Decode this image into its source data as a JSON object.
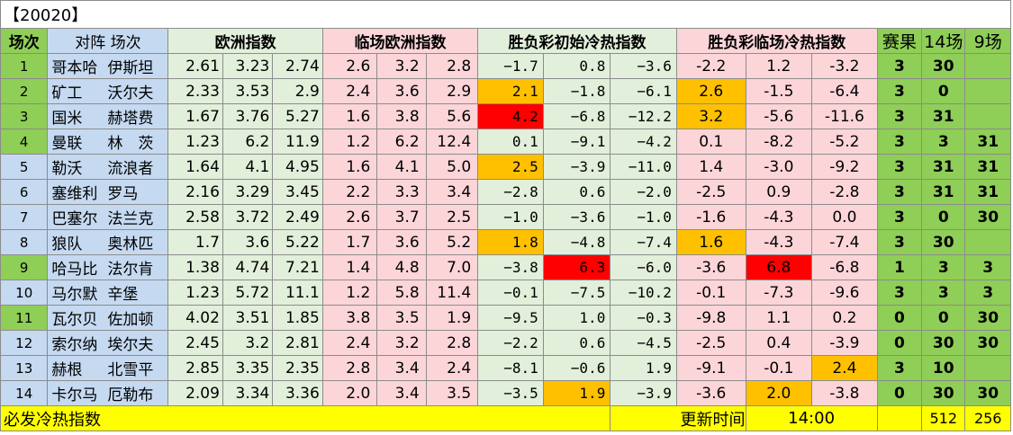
{
  "title": "【20020】",
  "headers": {
    "idx": "场次",
    "teams": "对阵 场次",
    "europe": "欧洲指数",
    "live_europe": "临场欧洲指数",
    "sf_initial": "胜负彩初始冷热指数",
    "sf_live": "胜负彩临场冷热指数",
    "result": "赛果",
    "fourteen": "14场",
    "nine": "9场"
  },
  "rows": [
    {
      "idx": "1",
      "home": "哥本哈",
      "away": "伊斯坦",
      "eu": [
        "2.61",
        "3.23",
        "2.74"
      ],
      "lc": [
        "2.6",
        "3.2",
        "2.8"
      ],
      "sf": [
        "−1.7",
        "0.8",
        "−3.6"
      ],
      "sfl": [
        "-2.2",
        "1.2",
        "-3.2"
      ],
      "result": "3",
      "f14": "30",
      "f9": ""
    },
    {
      "idx": "2",
      "home": "矿工",
      "away": "沃尔夫",
      "eu": [
        "2.33",
        "3.53",
        "2.9"
      ],
      "lc": [
        "2.4",
        "3.6",
        "2.9"
      ],
      "sf": [
        "2.1",
        "−1.8",
        "−6.1"
      ],
      "sfl": [
        "2.6",
        "-1.5",
        "-6.4"
      ],
      "result": "3",
      "f14": "0",
      "f9": ""
    },
    {
      "idx": "3",
      "home": "国米",
      "away": "赫塔费",
      "eu": [
        "1.67",
        "3.76",
        "5.27"
      ],
      "lc": [
        "1.6",
        "3.8",
        "5.6"
      ],
      "sf": [
        "4.2",
        "−6.8",
        "−12.2"
      ],
      "sfl": [
        "3.2",
        "-5.6",
        "-11.6"
      ],
      "result": "3",
      "f14": "31",
      "f9": ""
    },
    {
      "idx": "4",
      "home": "曼联",
      "away": "林　茨",
      "eu": [
        "1.23",
        "6.2",
        "11.9"
      ],
      "lc": [
        "1.2",
        "6.2",
        "12.4"
      ],
      "sf": [
        "0.1",
        "−9.1",
        "−4.2"
      ],
      "sfl": [
        "0.1",
        "-8.2",
        "-5.2"
      ],
      "result": "3",
      "f14": "3",
      "f9": "31"
    },
    {
      "idx": "5",
      "home": "勒沃",
      "away": "流浪者",
      "eu": [
        "1.64",
        "4.1",
        "4.95"
      ],
      "lc": [
        "1.6",
        "4.1",
        "5.0"
      ],
      "sf": [
        "2.5",
        "−3.9",
        "−11.0"
      ],
      "sfl": [
        "1.4",
        "-3.0",
        "-9.2"
      ],
      "result": "3",
      "f14": "31",
      "f9": "31"
    },
    {
      "idx": "6",
      "home": "塞维利",
      "away": "罗马",
      "eu": [
        "2.16",
        "3.29",
        "3.45"
      ],
      "lc": [
        "2.2",
        "3.3",
        "3.4"
      ],
      "sf": [
        "−2.8",
        "0.6",
        "−2.0"
      ],
      "sfl": [
        "-2.5",
        "0.9",
        "-2.8"
      ],
      "result": "3",
      "f14": "31",
      "f9": "31"
    },
    {
      "idx": "7",
      "home": "巴塞尔",
      "away": "法兰克",
      "eu": [
        "2.58",
        "3.72",
        "2.49"
      ],
      "lc": [
        "2.6",
        "3.7",
        "2.5"
      ],
      "sf": [
        "−1.0",
        "−3.6",
        "−1.0"
      ],
      "sfl": [
        "-1.6",
        "-4.3",
        "0.0"
      ],
      "result": "3",
      "f14": "0",
      "f9": "30"
    },
    {
      "idx": "8",
      "home": "狼队",
      "away": "奥林匹",
      "eu": [
        "1.7",
        "3.6",
        "5.22"
      ],
      "lc": [
        "1.7",
        "3.6",
        "5.2"
      ],
      "sf": [
        "1.8",
        "−4.8",
        "−7.4"
      ],
      "sfl": [
        "1.6",
        "-4.3",
        "-7.4"
      ],
      "result": "3",
      "f14": "30",
      "f9": ""
    },
    {
      "idx": "9",
      "home": "哈马比",
      "away": "法尔肯",
      "eu": [
        "1.38",
        "4.74",
        "7.21"
      ],
      "lc": [
        "1.4",
        "4.8",
        "7.0"
      ],
      "sf": [
        "−3.8",
        "6.3",
        "−6.0"
      ],
      "sfl": [
        "-3.6",
        "6.8",
        "-6.8"
      ],
      "result": "1",
      "f14": "3",
      "f9": "3"
    },
    {
      "idx": "10",
      "home": "马尔默",
      "away": "辛堡",
      "eu": [
        "1.23",
        "5.72",
        "11.1"
      ],
      "lc": [
        "1.2",
        "5.8",
        "11.4"
      ],
      "sf": [
        "−0.1",
        "−7.5",
        "−10.2"
      ],
      "sfl": [
        "-0.1",
        "-7.3",
        "-9.6"
      ],
      "result": "3",
      "f14": "3",
      "f9": "3"
    },
    {
      "idx": "11",
      "home": "瓦尔贝",
      "away": "佐加顿",
      "eu": [
        "4.02",
        "3.51",
        "1.85"
      ],
      "lc": [
        "3.8",
        "3.5",
        "1.9"
      ],
      "sf": [
        "−9.5",
        "1.0",
        "−0.3"
      ],
      "sfl": [
        "-9.8",
        "1.1",
        "0.2"
      ],
      "result": "0",
      "f14": "0",
      "f9": "30"
    },
    {
      "idx": "12",
      "home": "索尔纳",
      "away": "埃尔夫",
      "eu": [
        "2.45",
        "3.2",
        "2.81"
      ],
      "lc": [
        "2.4",
        "3.2",
        "2.8"
      ],
      "sf": [
        "−2.2",
        "0.6",
        "−4.5"
      ],
      "sfl": [
        "-2.5",
        "0.4",
        "-3.9"
      ],
      "result": "0",
      "f14": "30",
      "f9": "30"
    },
    {
      "idx": "13",
      "home": "赫根",
      "away": "北雪平",
      "eu": [
        "2.85",
        "3.35",
        "2.35"
      ],
      "lc": [
        "2.8",
        "3.4",
        "2.4"
      ],
      "sf": [
        "−8.1",
        "−0.6",
        "1.9"
      ],
      "sfl": [
        "-9.1",
        "-0.1",
        "2.4"
      ],
      "result": "3",
      "f14": "10",
      "f9": ""
    },
    {
      "idx": "14",
      "home": "卡尔马",
      "away": "厄勒布",
      "eu": [
        "2.09",
        "3.34",
        "3.36"
      ],
      "lc": [
        "2.0",
        "3.4",
        "3.5"
      ],
      "sf": [
        "−3.5",
        "1.9",
        "−3.9"
      ],
      "sfl": [
        "-3.6",
        "2.0",
        "-3.8"
      ],
      "result": "0",
      "f14": "30",
      "f9": "30"
    }
  ],
  "highlights": {
    "sf": [
      [
        1,
        0,
        "orange"
      ],
      [
        2,
        0,
        "red"
      ],
      [
        4,
        0,
        "orange"
      ],
      [
        7,
        0,
        "orange"
      ],
      [
        8,
        1,
        "red"
      ],
      [
        13,
        1,
        "orange"
      ]
    ],
    "sfl": [
      [
        1,
        0,
        "orange"
      ],
      [
        2,
        0,
        "orange"
      ],
      [
        7,
        0,
        "orange"
      ],
      [
        8,
        1,
        "red"
      ],
      [
        12,
        2,
        "orange"
      ],
      [
        13,
        1,
        "orange"
      ]
    ]
  },
  "idx_colors": [
    "green",
    "green",
    "green",
    "green",
    "blue",
    "blue",
    "blue",
    "blue",
    "green",
    "blue",
    "green",
    "blue",
    "blue",
    "blue"
  ],
  "footer": {
    "label": "必发冷热指数",
    "time_label": "更新时间",
    "time": "14:00",
    "total14": "512",
    "total9": "256"
  }
}
